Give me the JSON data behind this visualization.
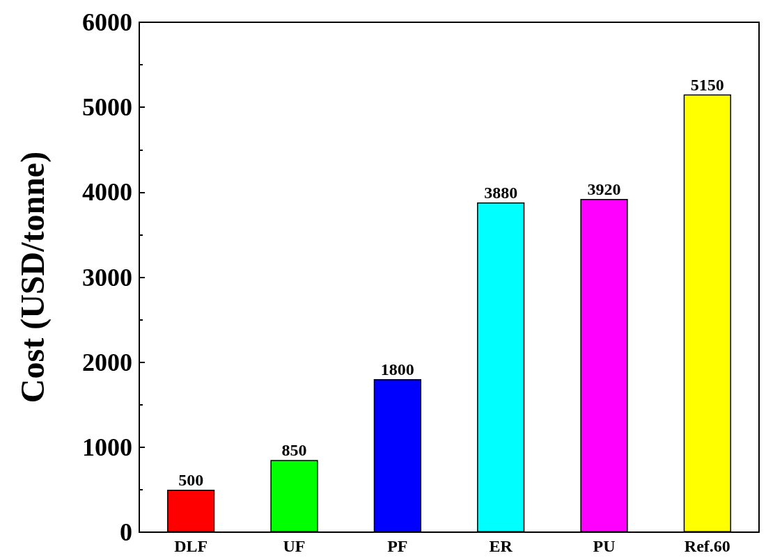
{
  "chart_data": {
    "type": "bar",
    "ylabel": "Cost (USD/tonne)",
    "categories": [
      "DLF",
      "UF",
      "PF",
      "ER",
      "PU",
      "Ref.60"
    ],
    "values": [
      500,
      850,
      1800,
      3880,
      3920,
      5150
    ],
    "colors": [
      "#ff0000",
      "#00ff00",
      "#0000ff",
      "#00ffff",
      "#ff00ff",
      "#ffff00"
    ],
    "ylim": [
      0,
      6000
    ],
    "yticks": [
      0,
      1000,
      2000,
      3000,
      4000,
      5000,
      6000
    ],
    "data_labels": true
  }
}
